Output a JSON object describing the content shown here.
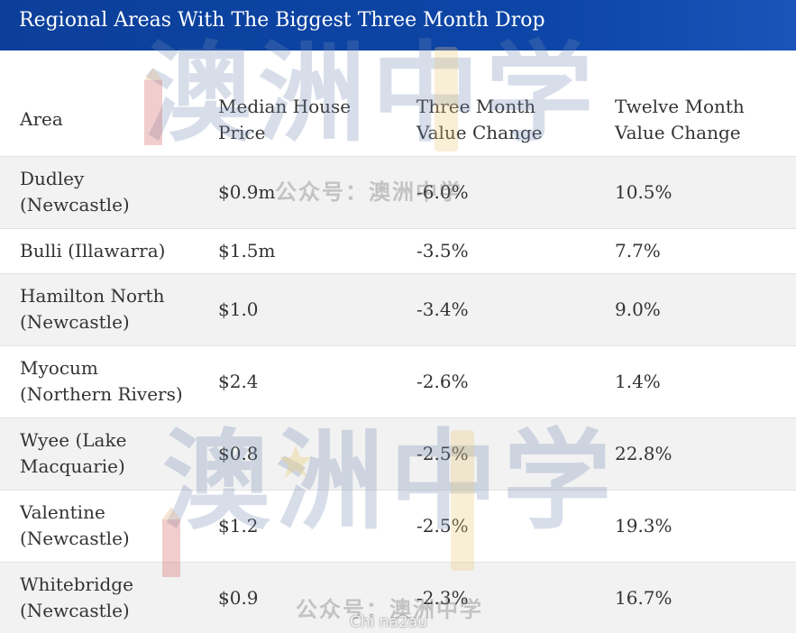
{
  "title": "Regional Areas With The Biggest Three Month Drop",
  "table": {
    "headers": [
      "Area",
      "Median House Price",
      "Three Month Value Change",
      "Twelve Month Value Change"
    ],
    "rows": [
      {
        "area": "Dudley (Newcastle)",
        "price": "$0.9m",
        "three": "-6.0%",
        "twelve": "10.5%"
      },
      {
        "area": "Bulli (Illawarra)",
        "price": "$1.5m",
        "three": "-3.5%",
        "twelve": "7.7%"
      },
      {
        "area": "Hamilton North (Newcastle)",
        "price": "$1.0",
        "three": "-3.4%",
        "twelve": "9.0%"
      },
      {
        "area": "Myocum (Northern Rivers)",
        "price": "$2.4",
        "three": "-2.6%",
        "twelve": "1.4%"
      },
      {
        "area": "Wyee (Lake Macquarie)",
        "price": "$0.8",
        "three": "-2.5%",
        "twelve": "22.8%"
      },
      {
        "area": "Valentine (Newcastle)",
        "price": "$1.2",
        "three": "-2.5%",
        "twelve": "19.3%"
      },
      {
        "area": "Whitebridge (Newcastle)",
        "price": "$0.9",
        "three": "-2.3%",
        "twelve": "16.7%"
      }
    ]
  },
  "watermark": {
    "logo_text": "澳洲中学",
    "account_text": "公众号：澳洲中学",
    "site_text": "Chi na2au"
  },
  "colors": {
    "title_bar": "#0c3f9a",
    "stripe": "#f2f2f2",
    "text": "#333333"
  }
}
